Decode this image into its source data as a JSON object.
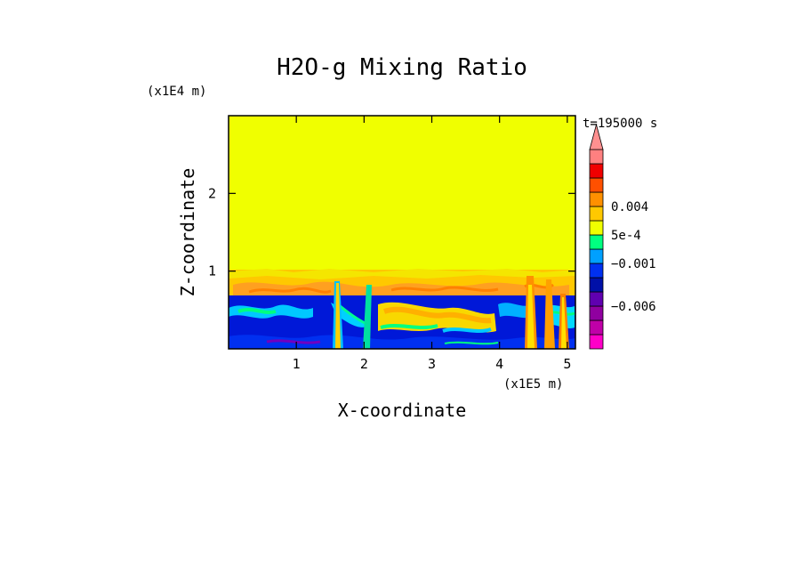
{
  "chart_data": {
    "type": "heatmap",
    "title": "H2O-g Mixing Ratio",
    "xlabel": "X-coordinate",
    "ylabel": "Z-coordinate",
    "x_scale_label": "(x1E5 m)",
    "y_scale_label": "(x1E4 m)",
    "time_label": "t=195000 s",
    "xlim": [
      0,
      5.12
    ],
    "ylim": [
      0,
      3.0
    ],
    "x_ticks": [
      1,
      2,
      3,
      4,
      5
    ],
    "x_tick_labels": [
      "1",
      "2",
      "3",
      "4",
      "5"
    ],
    "y_ticks": [
      1,
      2
    ],
    "y_tick_labels": [
      "1",
      "2"
    ],
    "regions": [
      {
        "name": "upper uniform layer",
        "z_range": [
          1.0,
          3.0
        ],
        "color": "#f0ff00"
      },
      {
        "name": "transition band",
        "z_range": [
          0.7,
          1.0
        ],
        "color": "#ffc800"
      },
      {
        "name": "turbulent boundary layer",
        "z_range": [
          0.0,
          0.7
        ],
        "color": "#0018d8"
      }
    ],
    "colorbar": {
      "levels": [
        {
          "color": "#ff00c8"
        },
        {
          "color": "#c000a8"
        },
        {
          "color": "#9000a0"
        },
        {
          "color": "#6000b0"
        },
        {
          "color": "#0010a8"
        },
        {
          "color": "#0030f0"
        },
        {
          "color": "#00a0ff"
        },
        {
          "color": "#00ff80"
        },
        {
          "color": "#f0ff00"
        },
        {
          "color": "#ffc800"
        },
        {
          "color": "#ff9000"
        },
        {
          "color": "#ff5000"
        },
        {
          "color": "#f00000"
        },
        {
          "color": "#ff8080"
        }
      ],
      "labels": [
        {
          "text": "0.004",
          "value": 0.004
        },
        {
          "text": "5e-4",
          "value": 0.0005
        },
        {
          "text": "−0.001",
          "value": -0.001
        },
        {
          "text": "−0.006",
          "value": -0.006
        }
      ],
      "extend_top_color": "#ff9090"
    }
  }
}
